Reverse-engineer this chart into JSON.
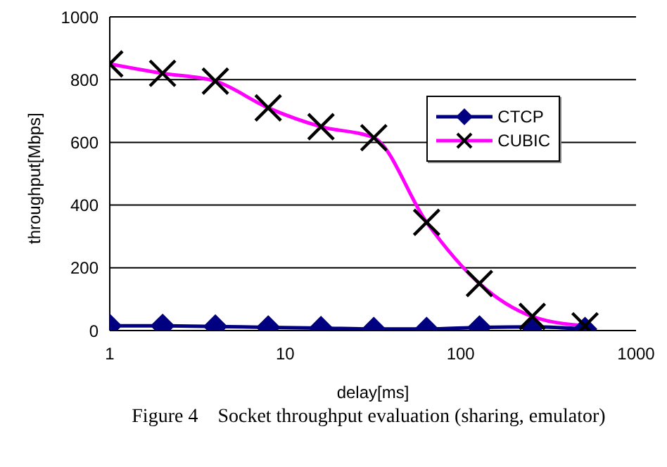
{
  "chart_data": {
    "type": "line",
    "xlabel": "delay[ms]",
    "ylabel": "throughput[Mbps]",
    "annotations": [
      "Figure 4    Socket throughput evaluation (sharing, emulator)"
    ],
    "log": "x",
    "xlim": [
      1,
      1000
    ],
    "xticks": [
      1,
      10,
      100,
      1000
    ],
    "ylim": [
      0,
      1000
    ],
    "yticks": [
      0,
      200,
      400,
      600,
      800,
      1000
    ],
    "grid": "y",
    "legend": "top right",
    "series": [
      {
        "name": "CTCP",
        "color": "#000080",
        "marker": "diamond",
        "x": [
          1,
          2,
          4,
          8,
          16,
          32,
          64,
          128,
          256,
          512
        ],
        "values": [
          15,
          15,
          13,
          10,
          8,
          5,
          5,
          10,
          12,
          5
        ]
      },
      {
        "name": "CUBIC",
        "color": "#ff00ff",
        "marker": "cross",
        "x": [
          1,
          2,
          4,
          8,
          16,
          32,
          64,
          128,
          256,
          512
        ],
        "values": [
          850,
          820,
          795,
          710,
          650,
          615,
          345,
          150,
          45,
          15
        ]
      }
    ]
  }
}
